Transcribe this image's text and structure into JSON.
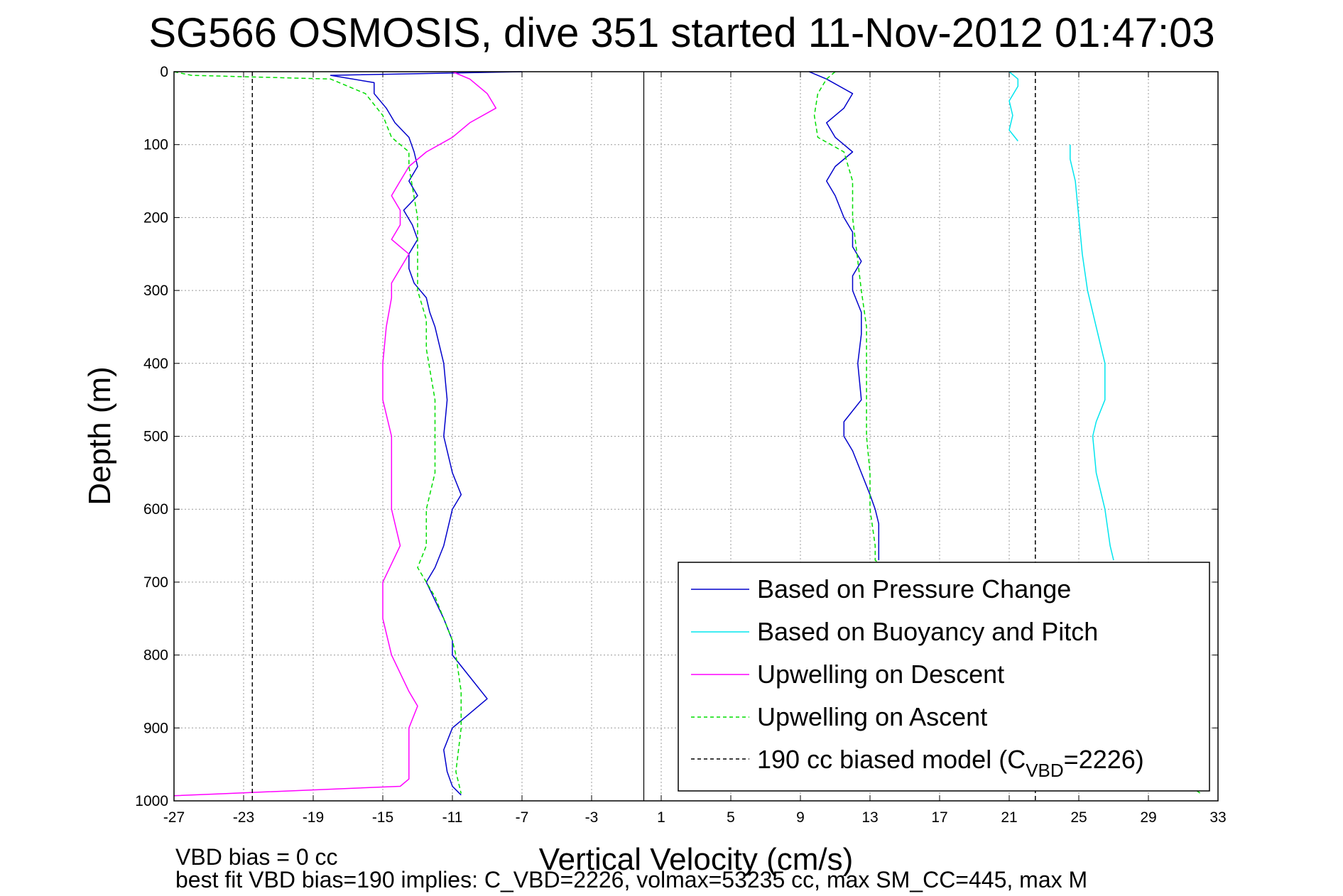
{
  "chart_data": {
    "type": "line",
    "title": "SG566 OSMOSIS, dive 351 started 11-Nov-2012 01:47:03",
    "xlabel": "Vertical Velocity (cm/s)",
    "ylabel": "Depth (m)",
    "xlim": [
      -27,
      33
    ],
    "ylim": [
      0,
      1000
    ],
    "y_reversed": true,
    "grid": true,
    "xticks": [
      "-27",
      "-23",
      "-19",
      "-15",
      "-11",
      "-7",
      "-3",
      "1",
      "5",
      "9",
      "13",
      "17",
      "21",
      "25",
      "29",
      "33"
    ],
    "yticks": [
      "0",
      "100",
      "200",
      "300",
      "400",
      "500",
      "600",
      "700",
      "800",
      "900",
      "1000"
    ],
    "legend_position": "bottom-right",
    "series": [
      {
        "name": "Based on Pressure Change",
        "color": "#0000cc",
        "style": "solid",
        "segments": [
          {
            "depth": [
              0,
              5,
              15,
              30,
              50,
              70,
              90,
              110,
              130,
              150,
              170,
              190,
              210,
              230,
              250,
              270,
              290,
              310,
              330,
              350,
              400,
              450,
              500,
              550,
              580,
              600,
              650,
              680,
              700,
              750,
              780,
              800,
              830,
              860,
              880,
              900,
              930,
              960,
              980,
              992
            ],
            "velocity": [
              -7,
              -18,
              -15.5,
              -15.5,
              -14.8,
              -14.3,
              -13.5,
              -13.2,
              -13.0,
              -13.5,
              -13.0,
              -13.8,
              -13.3,
              -13.0,
              -13.5,
              -13.5,
              -13.2,
              -12.5,
              -12.3,
              -12.0,
              -11.5,
              -11.3,
              -11.5,
              -11.0,
              -10.5,
              -11.0,
              -11.5,
              -12.0,
              -12.5,
              -11.5,
              -11.0,
              -11.0,
              -10.0,
              -9.0,
              -10.0,
              -11.0,
              -11.5,
              -11.3,
              -11.0,
              -10.5
            ]
          },
          {
            "depth": [
              0,
              10,
              30,
              50,
              70,
              90,
              100,
              110,
              130,
              150,
              170,
              200,
              220,
              240,
              260,
              280,
              300,
              330,
              360,
              400,
              450,
              480,
              500,
              520,
              550,
              580,
              600,
              620,
              650,
              670
            ],
            "velocity": [
              9.5,
              10.5,
              12.0,
              11.5,
              10.5,
              11.0,
              11.5,
              12.0,
              11.0,
              10.5,
              11.0,
              11.5,
              12.0,
              12.0,
              12.5,
              12.0,
              12.0,
              12.5,
              12.5,
              12.3,
              12.5,
              11.5,
              11.5,
              12.0,
              12.5,
              13.0,
              13.3,
              13.5,
              13.5,
              13.5
            ]
          }
        ]
      },
      {
        "name": "Based on Buoyancy and Pitch",
        "color": "#00e5ee",
        "style": "solid",
        "segments": [
          {
            "depth": [
              0,
              10,
              20,
              40,
              60,
              80,
              95
            ],
            "velocity": [
              21.0,
              21.5,
              21.5,
              21.0,
              21.2,
              21.0,
              21.5
            ]
          },
          {
            "depth": [
              100,
              120,
              150,
              200,
              250,
              300,
              350,
              400,
              450,
              480,
              500,
              550,
              600,
              650,
              670
            ],
            "velocity": [
              24.5,
              24.5,
              24.8,
              25.0,
              25.2,
              25.5,
              26.0,
              26.5,
              26.5,
              26.0,
              25.8,
              26.0,
              26.5,
              26.8,
              27.0
            ]
          }
        ]
      },
      {
        "name": "Upwelling on Descent",
        "color": "#ff00ff",
        "style": "solid",
        "segments": [
          {
            "depth": [
              0,
              10,
              30,
              50,
              70,
              90,
              110,
              130,
              150,
              170,
              190,
              210,
              230,
              250,
              270,
              290,
              310,
              350,
              400,
              450,
              500,
              550,
              600,
              650,
              700,
              750,
              800,
              850,
              870,
              900,
              940,
              970,
              980,
              990,
              993
            ],
            "velocity": [
              -11.0,
              -10.0,
              -9.0,
              -8.5,
              -10.0,
              -11.0,
              -12.5,
              -13.5,
              -14.0,
              -14.5,
              -14.0,
              -14.0,
              -14.5,
              -13.5,
              -14.0,
              -14.5,
              -14.5,
              -14.8,
              -15.0,
              -15.0,
              -14.5,
              -14.5,
              -14.5,
              -14.0,
              -15.0,
              -15.0,
              -14.5,
              -13.5,
              -13.0,
              -13.5,
              -13.5,
              -13.5,
              -14.0,
              -24.0,
              -27.0
            ]
          }
        ]
      },
      {
        "name": "Upwelling on Ascent",
        "color": "#00dd00",
        "style": "dashed",
        "segments": [
          {
            "depth": [
              0,
              5,
              10,
              30,
              60,
              90,
              110,
              130,
              200,
              300,
              340,
              380,
              450,
              500,
              550,
              600,
              650,
              680,
              720,
              750,
              780,
              800,
              850,
              900,
              960,
              990
            ],
            "velocity": [
              -27,
              -26,
              -18,
              -16.0,
              -15.0,
              -14.5,
              -13.5,
              -13.5,
              -13.0,
              -13.0,
              -12.5,
              -12.5,
              -12.0,
              -12.0,
              -12.0,
              -12.5,
              -12.5,
              -13.0,
              -12.0,
              -11.5,
              -11.0,
              -10.8,
              -10.5,
              -10.5,
              -10.8,
              -10.5
            ]
          },
          {
            "depth": [
              0,
              10,
              30,
              60,
              90,
              110,
              150,
              200,
              300,
              350,
              400,
              500,
              550,
              600,
              650,
              670,
              990
            ],
            "velocity": [
              11.0,
              10.5,
              10.0,
              9.8,
              10.0,
              11.5,
              12.0,
              12.0,
              12.5,
              12.8,
              12.8,
              12.8,
              13.0,
              13.0,
              13.3,
              13.3,
              32.0
            ]
          }
        ]
      },
      {
        "name": "190 cc biased model (C_VBD=2226)",
        "color": "#000000",
        "style": "dashed",
        "segments": [
          {
            "depth": [
              0,
              1000
            ],
            "velocity": [
              -22.5,
              -22.5
            ]
          },
          {
            "depth": [
              0,
              1000
            ],
            "velocity": [
              22.5,
              22.5
            ]
          }
        ]
      }
    ],
    "reference_lines": [
      {
        "velocity": 0,
        "color": "#000000",
        "style": "solid"
      }
    ]
  },
  "legend": {
    "entries": [
      {
        "text": "Based on Pressure Change",
        "color": "#0000cc",
        "style": "solid"
      },
      {
        "text": "Based on Buoyancy and Pitch",
        "color": "#00e5ee",
        "style": "solid"
      },
      {
        "text": "Upwelling on Descent",
        "color": "#ff00ff",
        "style": "solid"
      },
      {
        "text": "Upwelling on Ascent",
        "color": "#00dd00",
        "style": "dashed"
      }
    ],
    "model_entry": {
      "prefix": "190 cc biased model (C",
      "subscript": "VBD",
      "suffix": "=2226)",
      "color": "#000000",
      "style": "dashed"
    }
  },
  "footer": {
    "line1": "VBD bias = 0 cc",
    "line2": "best fit VBD bias=190 implies: C_VBD=2226, volmax=53235 cc, max SM_CC=445, max M"
  }
}
